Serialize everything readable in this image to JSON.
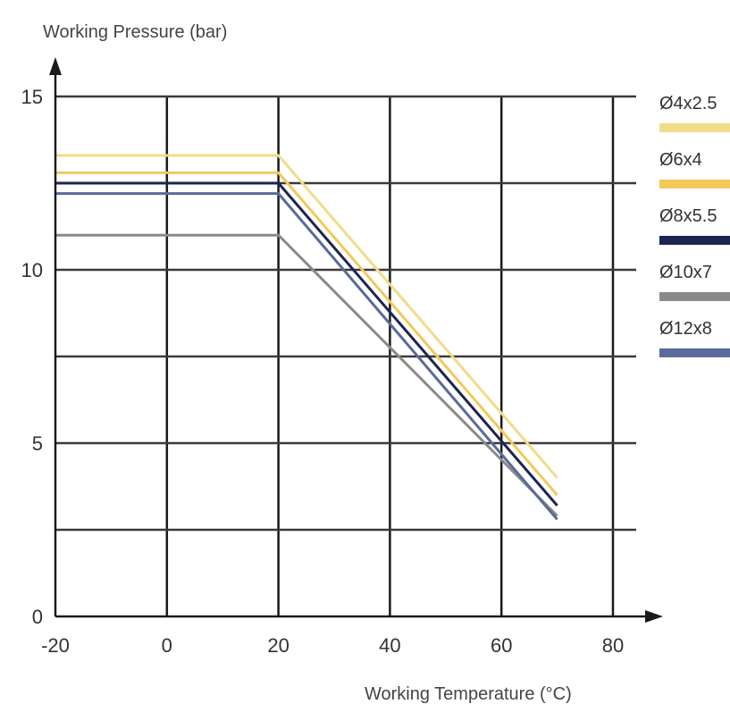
{
  "chart_data": {
    "type": "line",
    "xlabel": "Working Temperature (°C)",
    "ylabel": "Working Pressure (bar)",
    "xlim": [
      -20,
      80
    ],
    "ylim": [
      0,
      15
    ],
    "x_ticks": [
      "-20",
      "0",
      "20",
      "40",
      "60",
      "80"
    ],
    "y_ticks": [
      "0",
      "5",
      "10",
      "15"
    ],
    "grid": true,
    "legend_position": "right",
    "series": [
      {
        "name": "Ø4x2.5",
        "color": "#f1dc88",
        "x": [
          -20,
          20,
          70
        ],
        "y": [
          13.3,
          13.3,
          4.0
        ]
      },
      {
        "name": "Ø6x4",
        "color": "#f2c95a",
        "x": [
          -20,
          20,
          70
        ],
        "y": [
          12.8,
          12.8,
          3.5
        ]
      },
      {
        "name": "Ø8x5.5",
        "color": "#1c2550",
        "x": [
          -20,
          20,
          70
        ],
        "y": [
          12.5,
          12.5,
          3.2
        ]
      },
      {
        "name": "Ø10x7",
        "color": "#8a8a88",
        "x": [
          -20,
          20,
          70
        ],
        "y": [
          11.0,
          11.0,
          2.9
        ]
      },
      {
        "name": "Ø12x8",
        "color": "#5a6a9a",
        "x": [
          -20,
          20,
          70
        ],
        "y": [
          12.2,
          12.2,
          2.8
        ]
      }
    ]
  }
}
